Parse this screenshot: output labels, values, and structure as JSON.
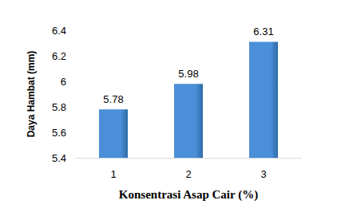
{
  "chart_data": {
    "type": "bar",
    "x_label": "Konsentrasi Asap Cair (%)",
    "y_label": "Daya Hambat (mm)",
    "categories": [
      "1",
      "2",
      "3"
    ],
    "values": [
      5.78,
      5.98,
      6.31
    ],
    "color": "#4a8fd8",
    "ylim": [
      5.4,
      6.4
    ],
    "yticks": [
      5.4,
      5.6,
      5.8,
      6,
      6.2,
      6.4
    ],
    "grid": false,
    "data_labels": true
  }
}
